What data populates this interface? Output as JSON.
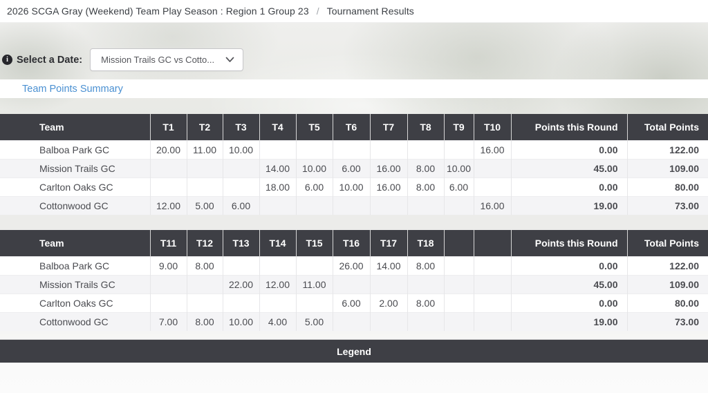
{
  "breadcrumb": {
    "season": "2026 SCGA Gray (Weekend) Team Play Season : Region 1 Group 23",
    "separator": "/",
    "current": "Tournament Results"
  },
  "date_selector": {
    "info_icon_glyph": "i",
    "label": "Select a Date:",
    "selected_value": "Mission Trails GC vs Cotto..."
  },
  "summary_link_label": "Team Points Summary",
  "legend_title": "Legend",
  "colors": {
    "table_header_bg": "#3e3f45",
    "link_blue": "#4a90d2",
    "row_stripe": "#f4f4f6"
  },
  "tables": [
    {
      "headers": [
        "Team",
        "T1",
        "T2",
        "T3",
        "T4",
        "T5",
        "T6",
        "T7",
        "T8",
        "T9",
        "T10",
        "Points this Round",
        "Total Points"
      ],
      "rows": [
        {
          "team": "Balboa Park GC",
          "scores": [
            "20.00",
            "11.00",
            "10.00",
            "",
            "",
            "",
            "",
            "",
            "",
            "16.00"
          ],
          "points_this_round": "0.00",
          "total_points": "122.00"
        },
        {
          "team": "Mission Trails GC",
          "scores": [
            "",
            "",
            "",
            "14.00",
            "10.00",
            "6.00",
            "16.00",
            "8.00",
            "10.00",
            ""
          ],
          "points_this_round": "45.00",
          "total_points": "109.00"
        },
        {
          "team": "Carlton Oaks GC",
          "scores": [
            "",
            "",
            "",
            "18.00",
            "6.00",
            "10.00",
            "16.00",
            "8.00",
            "6.00",
            ""
          ],
          "points_this_round": "0.00",
          "total_points": "80.00"
        },
        {
          "team": "Cottonwood GC",
          "scores": [
            "12.00",
            "5.00",
            "6.00",
            "",
            "",
            "",
            "",
            "",
            "",
            "16.00"
          ],
          "points_this_round": "19.00",
          "total_points": "73.00"
        }
      ]
    },
    {
      "headers": [
        "Team",
        "T11",
        "T12",
        "T13",
        "T14",
        "T15",
        "T16",
        "T17",
        "T18",
        "",
        "",
        "Points this Round",
        "Total Points"
      ],
      "rows": [
        {
          "team": "Balboa Park GC",
          "scores": [
            "9.00",
            "8.00",
            "",
            "",
            "",
            "26.00",
            "14.00",
            "8.00",
            "",
            ""
          ],
          "points_this_round": "0.00",
          "total_points": "122.00"
        },
        {
          "team": "Mission Trails GC",
          "scores": [
            "",
            "",
            "22.00",
            "12.00",
            "11.00",
            "",
            "",
            "",
            "",
            ""
          ],
          "points_this_round": "45.00",
          "total_points": "109.00"
        },
        {
          "team": "Carlton Oaks GC",
          "scores": [
            "",
            "",
            "",
            "",
            "",
            "6.00",
            "2.00",
            "8.00",
            "",
            ""
          ],
          "points_this_round": "0.00",
          "total_points": "80.00"
        },
        {
          "team": "Cottonwood GC",
          "scores": [
            "7.00",
            "8.00",
            "10.00",
            "4.00",
            "5.00",
            "",
            "",
            "",
            "",
            ""
          ],
          "points_this_round": "19.00",
          "total_points": "73.00"
        }
      ]
    }
  ]
}
